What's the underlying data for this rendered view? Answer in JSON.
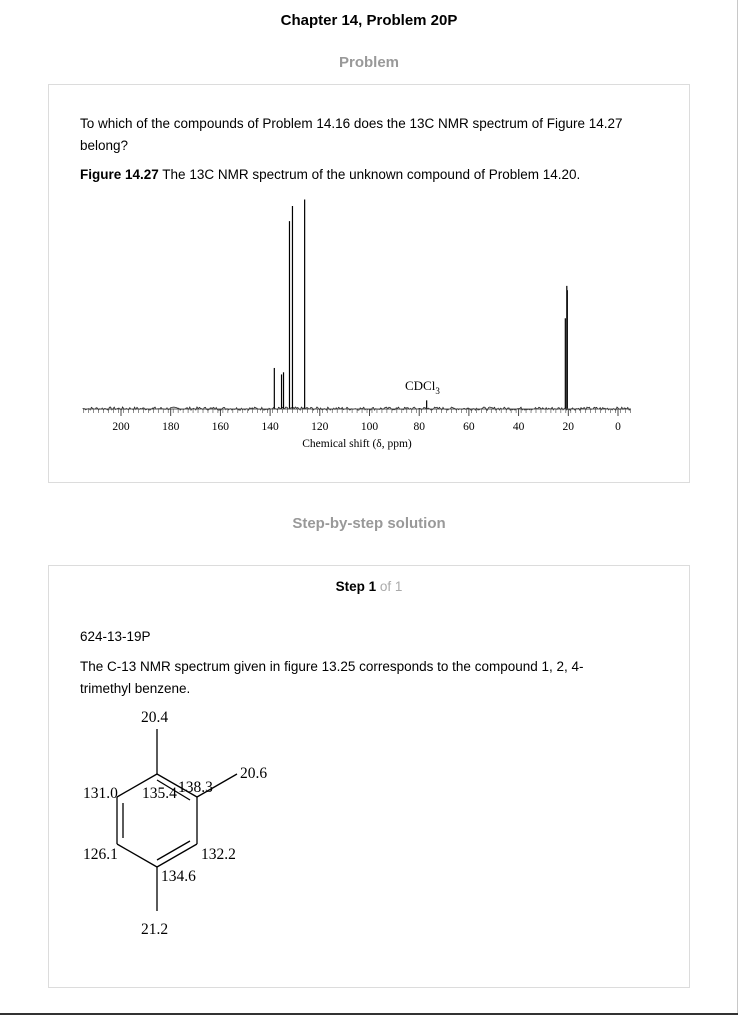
{
  "header": {
    "title": "Chapter 14, Problem 20P"
  },
  "problem": {
    "heading": "Problem",
    "question": "To which of the compounds of Problem 14.16 does the 13C NMR spectrum of Figure 14.27 belong?",
    "figure_label": "Figure 14.27",
    "figure_caption": " The 13C NMR spectrum of the unknown compound of Problem 14.20."
  },
  "spectrum": {
    "xaxis_label": "Chemical shift (δ, ppm)",
    "solvent_label": "CDCl",
    "solvent_subscript": "3",
    "ticks": [
      "200",
      "180",
      "160",
      "140",
      "120",
      "100",
      "80",
      "60",
      "40",
      "20",
      "0"
    ]
  },
  "chart_data": {
    "type": "line",
    "title": "",
    "xlabel": "Chemical shift (δ, ppm)",
    "ylabel": "",
    "xlim": [
      200,
      0
    ],
    "x_reversed": true,
    "peaks": [
      {
        "x": 138.3,
        "y": 0.19
      },
      {
        "x": 135.4,
        "y": 0.16
      },
      {
        "x": 134.6,
        "y": 0.17
      },
      {
        "x": 132.2,
        "y": 0.87
      },
      {
        "x": 131.0,
        "y": 0.94
      },
      {
        "x": 126.1,
        "y": 0.97
      },
      {
        "x": 77.0,
        "y": 0.04
      },
      {
        "x": 21.2,
        "y": 0.42
      },
      {
        "x": 20.6,
        "y": 0.57
      },
      {
        "x": 20.4,
        "y": 0.55
      }
    ],
    "annotations": [
      {
        "text": "CDCl3",
        "x": 77
      }
    ]
  },
  "solution": {
    "heading": "Step-by-step solution",
    "step_word": "Step 1",
    "step_of": " of 1",
    "code": "624-13-19P",
    "text": "The C-13 NMR spectrum given in figure 13.25 corresponds to the compound 1, 2, 4-trimethyl benzene."
  },
  "structure": {
    "labels": {
      "top_methyl": "20.4",
      "right_methyl": "20.6",
      "c_upper_left": "131.0",
      "c_top": "135.4",
      "c_upper_right": "138.3",
      "c_lower_left": "126.1",
      "c_lower_right": "132.2",
      "c_bottom": "134.6",
      "bottom_methyl": "21.2"
    }
  }
}
